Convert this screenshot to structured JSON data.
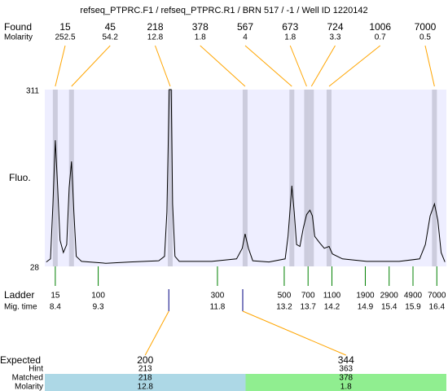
{
  "header": {
    "title": "refseq_PTPRC.F1 / refseq_PTPRC.R1 / BRN 517 / -1 / Well ID 1220142"
  },
  "chart_data": {
    "type": "electropherogram",
    "found_label": "Found",
    "molarity_label": "Molarity",
    "y_label": "Fluo.",
    "ylim": [
      28,
      311
    ],
    "yticks": [
      28,
      311
    ],
    "xlim": [
      8.18,
      16.6
    ],
    "plot_color": "#eeeeff",
    "band_color": "#ccccdd",
    "trace": {
      "color": "#000000",
      "x": [
        8.21,
        8.3,
        8.35,
        8.4,
        8.45,
        8.5,
        8.57,
        8.64,
        8.69,
        8.74,
        8.79,
        8.84,
        8.95,
        9.46,
        9.97,
        10.57,
        10.69,
        10.74,
        10.79,
        10.83,
        10.86,
        10.91,
        11.0,
        11.68,
        12.2,
        12.32,
        12.38,
        12.45,
        12.54,
        12.88,
        13.22,
        13.28,
        13.36,
        13.41,
        13.46,
        13.53,
        13.6,
        13.67,
        13.74,
        13.79,
        13.84,
        13.94,
        14.04,
        14.14,
        14.21,
        14.42,
        14.93,
        15.61,
        16.04,
        16.16,
        16.26,
        16.35,
        16.42,
        16.49,
        16.57
      ],
      "values": [
        35,
        40,
        128,
        230,
        154,
        70,
        50,
        63,
        154,
        196,
        115,
        44,
        36,
        33,
        35,
        37,
        44,
        115,
        311,
        311,
        128,
        44,
        36,
        36,
        40,
        57,
        80,
        57,
        37,
        35,
        40,
        76,
        157,
        115,
        63,
        60,
        89,
        111,
        118,
        109,
        76,
        66,
        57,
        60,
        48,
        40,
        36,
        36,
        40,
        63,
        109,
        128,
        102,
        50,
        35
      ]
    },
    "found_peaks": {
      "color": "#ffa500",
      "sizes": [
        15,
        45,
        218,
        378,
        567,
        673,
        724,
        1006,
        7000
      ],
      "molarity": [
        252.5,
        54.2,
        12.8,
        1.8,
        4,
        1.8,
        3.3,
        0.7,
        0.5
      ],
      "x": [
        8.4,
        8.74,
        10.81,
        12.38,
        13.36,
        13.67,
        13.77,
        14.14,
        16.35
      ]
    },
    "ladder": {
      "label": "Ladder",
      "time_label": "Mig. time",
      "color": "#008000",
      "sizes": [
        15,
        100,
        300,
        500,
        700,
        1100,
        1900,
        2900,
        4900,
        7000
      ],
      "times": [
        8.4,
        9.3,
        11.8,
        13.2,
        13.7,
        14.2,
        14.9,
        15.4,
        15.9,
        16.4
      ]
    },
    "expected": {
      "label": "Expected",
      "hint_label": "Hint",
      "matched_label": "Matched",
      "molarity_label": "Molarity",
      "sizes": [
        200,
        344
      ],
      "x": [
        10.78,
        12.33
      ],
      "hint": [
        213,
        363
      ],
      "matched": [
        218,
        378
      ],
      "molarity": [
        12.8,
        1.8
      ],
      "colors": [
        "#add8e6",
        "#90ee90"
      ],
      "marker_color": "#000080"
    }
  }
}
